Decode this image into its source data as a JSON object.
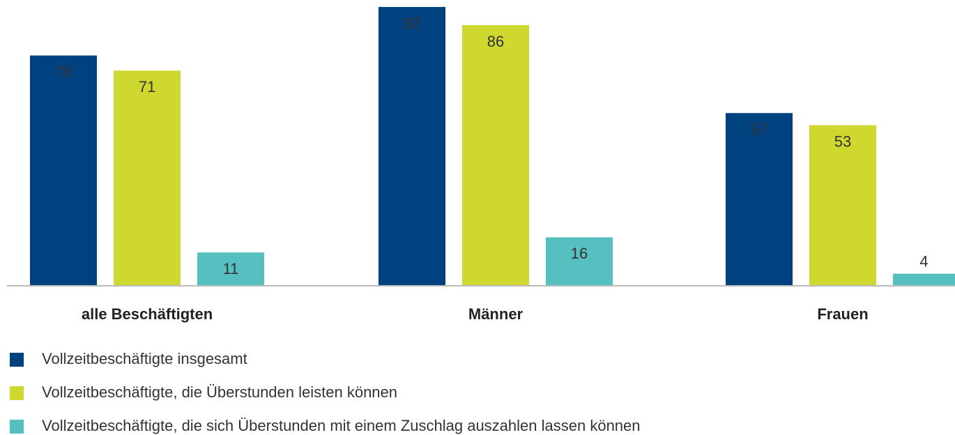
{
  "chart_data": {
    "type": "bar",
    "categories": [
      "alle Beschäftigten",
      "Männer",
      "Frauen"
    ],
    "series": [
      {
        "name": "Vollzeitbeschäftigte insgesamt",
        "color": "#00427f",
        "values": [
          76,
          92,
          57
        ]
      },
      {
        "name": "Vollzeitbeschäftigte, die Überstunden leisten können",
        "color": "#cfd82e",
        "values": [
          71,
          86,
          53
        ]
      },
      {
        "name": "Vollzeitbeschäftigte, die sich Überstunden mit einem Zuschlag auszahlen lassen können",
        "color": "#56bfc0",
        "values": [
          11,
          16,
          4
        ]
      }
    ]
  }
}
